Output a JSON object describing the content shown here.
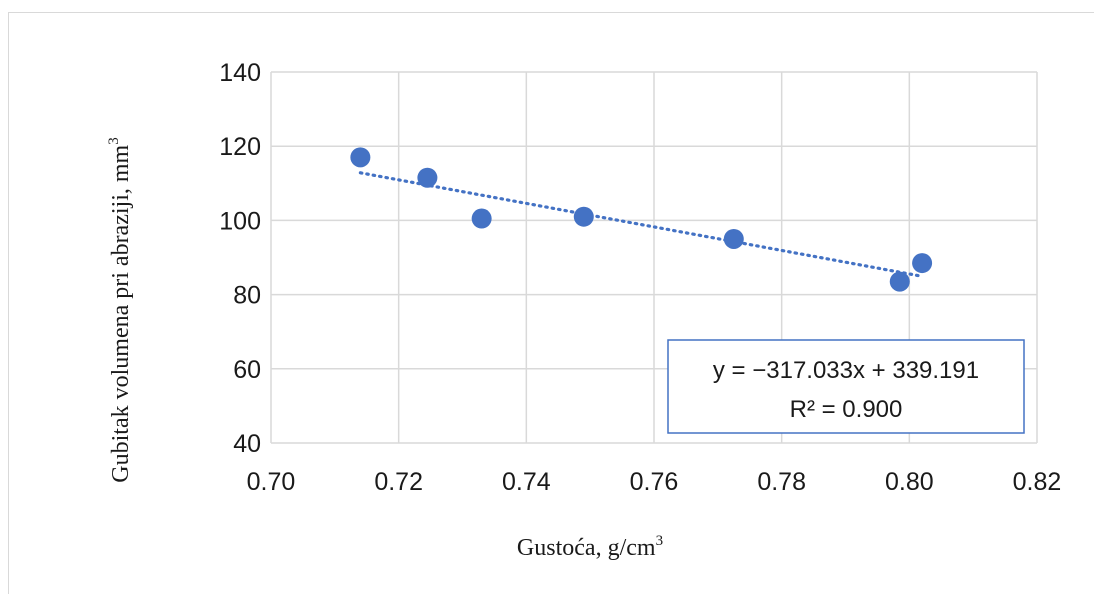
{
  "chart_data": {
    "type": "scatter",
    "title": "",
    "xlabel": "Gustoća, g/cm",
    "xlabel_sup": "3",
    "ylabel": "Gubitak volumena pri abraziji, mm",
    "ylabel_sup": "3",
    "xlim": [
      0.7,
      0.82
    ],
    "ylim": [
      40,
      140
    ],
    "x_ticks": [
      "0.70",
      "0.72",
      "0.74",
      "0.76",
      "0.78",
      "0.80",
      "0.82"
    ],
    "y_ticks": [
      "40",
      "60",
      "80",
      "100",
      "120",
      "140"
    ],
    "grid": true,
    "series": [
      {
        "x": [
          0.714,
          0.7245,
          0.733,
          0.749,
          0.7725,
          0.7985,
          0.802
        ],
        "y": [
          117.0,
          111.5,
          100.5,
          101.0,
          95.0,
          83.5,
          88.5
        ]
      }
    ],
    "trendline": {
      "type": "linear",
      "slope": -317.033,
      "intercept": 339.191,
      "x_range": [
        0.714,
        0.802
      ]
    },
    "annotation": {
      "equation": "y = −317.033x + 339.191",
      "r2": "R² = 0.900"
    },
    "colors": {
      "marker": "#4472C4",
      "trendline": "#4472C4",
      "grid": "#d9d9d9",
      "box_border": "#4472C4"
    }
  }
}
